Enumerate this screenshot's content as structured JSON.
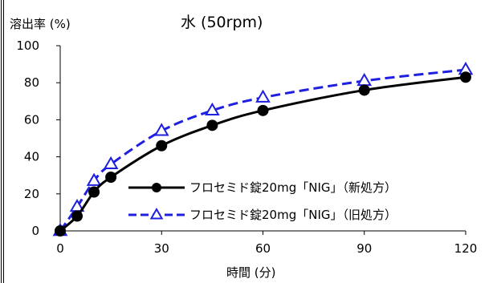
{
  "chart_data": {
    "type": "line",
    "title": "水 (50rpm)",
    "ylabel": "溶出率 (%)",
    "xlabel": "時間 (分)",
    "x": [
      0,
      5,
      10,
      15,
      30,
      45,
      60,
      90,
      120
    ],
    "xticks": [
      "0",
      "30",
      "60",
      "90",
      "120"
    ],
    "yticks": [
      "0",
      "20",
      "40",
      "60",
      "80",
      "100"
    ],
    "xlim": [
      0,
      120
    ],
    "ylim": [
      0,
      100
    ],
    "grid": false,
    "legend_position": "center-right",
    "series": [
      {
        "name": "フロセミド錠20mg「NIG」（新処方）",
        "values": [
          0,
          8,
          21,
          29,
          46,
          57,
          65,
          76,
          83
        ],
        "color": "#000000",
        "marker": "filled-circle",
        "line": "solid"
      },
      {
        "name": "フロセミド錠20mg「NIG」（旧処方）",
        "values": [
          0,
          13,
          27,
          36,
          54,
          65,
          72,
          81,
          87
        ],
        "color": "#1f1fe0",
        "marker": "open-triangle",
        "line": "dashed"
      }
    ]
  }
}
